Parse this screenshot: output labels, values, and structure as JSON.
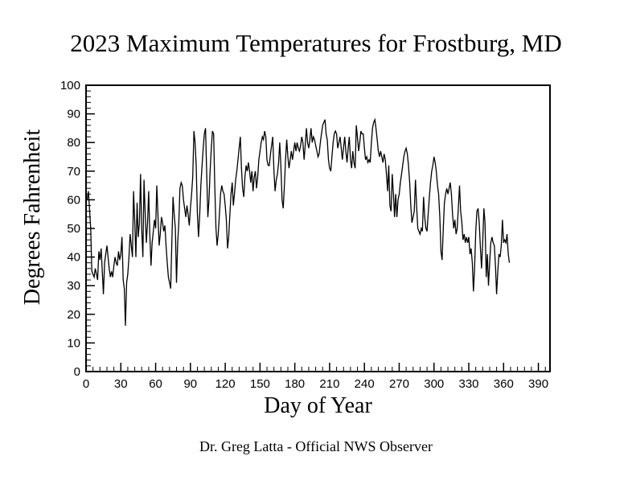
{
  "title": "2023 Maximum Temperatures for Frostburg, MD",
  "footer": "Dr. Greg Latta - Official NWS Observer",
  "colors": {
    "foreground": "#000000",
    "background": "#ffffff"
  },
  "chart_data": {
    "type": "line",
    "title": "2023 Maximum Temperatures for Frostburg, MD",
    "xlabel": "Day of Year",
    "ylabel": "Degrees Fahrenheit",
    "xlim": [
      0,
      400
    ],
    "ylim": [
      0,
      100
    ],
    "x_major_ticks": [
      0,
      30,
      60,
      90,
      120,
      150,
      180,
      210,
      240,
      270,
      300,
      330,
      360,
      390
    ],
    "x_minor_step": 6,
    "y_major_ticks": [
      0,
      10,
      20,
      30,
      40,
      50,
      60,
      70,
      80,
      90,
      100
    ],
    "y_minor_step": 2,
    "grid": false,
    "legend": "none",
    "line_color": "#000000",
    "x_start_day": 1,
    "values": [
      60,
      63,
      57,
      50,
      35,
      34,
      33,
      36,
      34,
      32,
      42,
      39,
      43,
      35,
      27,
      38,
      41,
      44,
      40,
      36,
      33,
      35,
      33,
      37,
      40,
      38,
      37,
      42,
      39,
      41,
      47,
      32,
      29,
      16,
      31,
      34,
      40,
      48,
      44,
      40,
      63,
      52,
      40,
      59,
      47,
      52,
      69,
      50,
      40,
      67,
      55,
      45,
      52,
      63,
      48,
      37,
      45,
      49,
      53,
      50,
      65,
      55,
      44,
      48,
      54,
      52,
      49,
      51,
      44,
      38,
      33,
      31,
      29,
      45,
      61,
      55,
      50,
      31,
      45,
      52,
      64,
      66,
      65,
      60,
      57,
      54,
      58,
      55,
      51,
      57,
      62,
      68,
      84,
      80,
      72,
      55,
      47,
      55,
      65,
      72,
      78,
      83,
      85,
      70,
      54,
      60,
      70,
      78,
      84,
      83,
      65,
      50,
      44,
      48,
      55,
      62,
      65,
      63,
      62,
      58,
      53,
      43,
      47,
      55,
      62,
      66,
      58,
      62,
      67,
      70,
      74,
      78,
      82,
      71,
      64,
      61,
      68,
      72,
      70,
      73,
      70,
      66,
      70,
      63,
      68,
      70,
      64,
      68,
      74,
      77,
      80,
      82,
      81,
      84,
      82,
      74,
      72,
      72,
      76,
      79,
      82,
      70,
      63,
      67,
      69,
      73,
      80,
      72,
      60,
      57,
      65,
      74,
      81,
      75,
      71,
      74,
      77,
      74,
      77,
      80,
      77,
      80,
      78,
      77,
      79,
      82,
      80,
      74,
      79,
      85,
      80,
      78,
      81,
      85,
      80,
      82,
      81,
      79,
      77,
      75,
      76,
      80,
      83,
      86,
      87,
      88,
      83,
      81,
      74,
      71,
      70,
      75,
      80,
      83,
      84,
      83,
      78,
      80,
      82,
      78,
      74,
      78,
      82,
      77,
      73,
      78,
      82,
      74,
      71,
      77,
      73,
      71,
      86,
      82,
      77,
      80,
      84,
      83,
      83,
      78,
      74,
      75,
      73,
      74,
      73,
      80,
      85,
      87,
      88,
      85,
      81,
      77,
      75,
      77,
      75,
      73,
      76,
      74,
      69,
      63,
      72,
      58,
      56,
      69,
      62,
      54,
      62,
      54,
      60,
      62,
      66,
      69,
      72,
      75,
      77,
      78,
      76,
      72,
      66,
      58,
      52,
      54,
      56,
      67,
      58,
      50,
      49,
      48,
      50,
      49,
      61,
      54,
      50,
      49,
      55,
      61,
      66,
      70,
      72,
      75,
      73,
      70,
      65,
      62,
      54,
      42,
      39,
      50,
      59,
      62,
      64,
      62,
      64,
      66,
      62,
      55,
      50,
      53,
      48,
      50,
      57,
      65,
      56,
      52,
      46,
      48,
      45,
      47,
      45,
      47,
      41,
      43,
      38,
      28,
      36,
      49,
      56,
      57,
      52,
      43,
      36,
      45,
      57,
      52,
      33,
      41,
      30,
      38,
      45,
      47,
      45,
      44,
      37,
      27,
      35,
      41,
      40,
      44,
      53,
      45,
      46,
      45,
      48,
      41,
      38
    ]
  }
}
